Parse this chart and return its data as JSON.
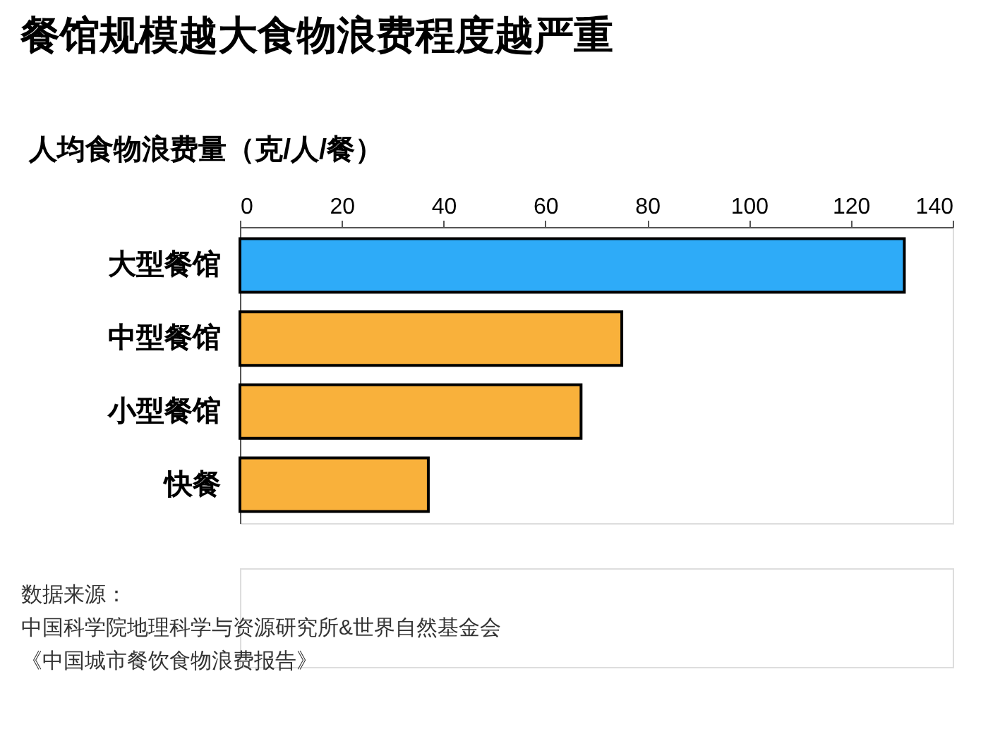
{
  "chart_data": {
    "type": "bar",
    "orientation": "horizontal",
    "title": "餐馆规模越大食物浪费程度越严重",
    "xlabel": "人均食物浪费量（克/人/餐）",
    "categories": [
      "大型餐馆",
      "中型餐馆",
      "小型餐馆",
      "快餐"
    ],
    "values": [
      130.5,
      75,
      67,
      37
    ],
    "colors": [
      "#2eabf8",
      "#f9b13b",
      "#f9b13b",
      "#f9b13b"
    ],
    "xlim": [
      0,
      140
    ],
    "xticks": [
      0,
      20,
      40,
      60,
      80,
      100,
      120,
      140
    ],
    "grid": false,
    "annotations": [
      "数据来源：",
      "中国科学院地理科学与资源研究所&世界自然基金会",
      "《中国城市餐饮食物浪费报告》"
    ]
  }
}
